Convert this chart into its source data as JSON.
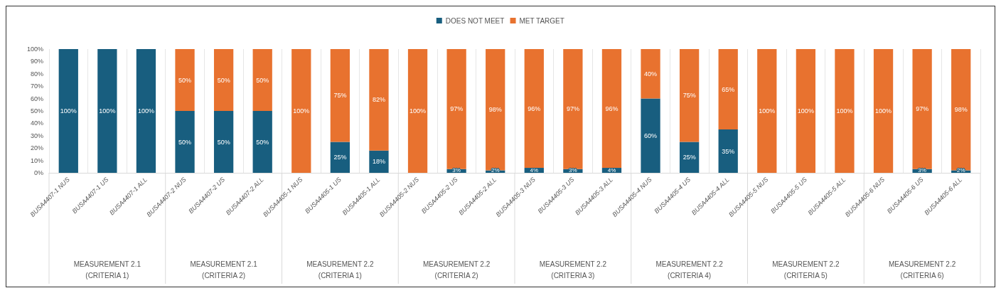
{
  "chart_data": {
    "type": "bar",
    "stacked": true,
    "legend": "top",
    "grid": "x",
    "categories": [
      "BUSA4407-1 NUS",
      "BUSA4407-1 US",
      "BUSA4407-1 ALL",
      "BUSA4407-2 NUS",
      "BUSA4407-2 US",
      "BUSA4407-2 ALL",
      "BUSA4405-1 NUS",
      "BUSA4405-1 US",
      "BUSA4405-1 ALL",
      "BUSA4405-2 NUS",
      "BUSA4405-2 US",
      "BUSA4405-2 ALL",
      "BUSA4405-3 NUS",
      "BUSA4405-3 US",
      "BUSA4405-3 ALL",
      "BUSA4405-4 NUS",
      "BUSA4405-4 US",
      "BUSA4405-4 ALL",
      "BUSA4405-5 NUS",
      "BUSA4405-5 US",
      "BUSA4405-5 ALL",
      "BUSA4405-6 NUS",
      "BUSA4405-6 US",
      "BUSA4405-6 ALL"
    ],
    "series": [
      {
        "name": "DOES NOT MEET",
        "color": "#185e7f",
        "values": [
          100,
          100,
          100,
          50,
          50,
          50,
          0,
          25,
          18,
          0,
          3,
          2,
          4,
          3,
          4,
          60,
          25,
          35,
          0,
          0,
          0,
          0,
          3,
          2
        ],
        "value_labels": [
          "100%",
          "100%",
          "100%",
          "50%",
          "50%",
          "50%",
          null,
          "25%",
          "18%",
          null,
          "3%",
          "2%",
          "4%",
          "3%",
          "4%",
          "60%",
          "25%",
          "35%",
          null,
          null,
          null,
          null,
          "3%",
          "2%"
        ]
      },
      {
        "name": "MET TARGET",
        "color": "#e8722f",
        "values": [
          0,
          0,
          0,
          50,
          50,
          50,
          100,
          75,
          82,
          100,
          97,
          98,
          96,
          97,
          96,
          40,
          75,
          65,
          100,
          100,
          100,
          100,
          97,
          98
        ],
        "value_labels": [
          null,
          null,
          null,
          "50%",
          "50%",
          "50%",
          "100%",
          "75%",
          "82%",
          "100%",
          "97%",
          "98%",
          "96%",
          "97%",
          "96%",
          "40%",
          "75%",
          "65%",
          "100%",
          "100%",
          "100%",
          "100%",
          "97%",
          "98%"
        ]
      }
    ],
    "ylim": [
      0,
      100
    ],
    "yticks": [
      {
        "value": 0,
        "label": "0%"
      },
      {
        "value": 10,
        "label": "10%"
      },
      {
        "value": 20,
        "label": "20%"
      },
      {
        "value": 30,
        "label": "30%"
      },
      {
        "value": 40,
        "label": "40%"
      },
      {
        "value": 50,
        "label": "50%"
      },
      {
        "value": 60,
        "label": "60%"
      },
      {
        "value": 70,
        "label": "70%"
      },
      {
        "value": 80,
        "label": "80%"
      },
      {
        "value": 90,
        "label": "90%"
      },
      {
        "value": 100,
        "label": "100%"
      }
    ],
    "annotations": [
      "MEASUREMENT 2.1\n(CRITERIA 1)",
      "MEASUREMENT 2.1\n(CRITERIA 2)",
      "MEASUREMENT 2.2\n(CRITERIA 1)",
      "MEASUREMENT 2.2\n(CRITERIA 2)",
      "MEASUREMENT 2.2\n(CRITERIA 3)",
      "MEASUREMENT 2.2\n(CRITERIA 4)",
      "MEASUREMENT 2.2\n(CRITERIA 5)",
      "MEASUREMENT 2.2\n(CRITERIA 6)"
    ]
  }
}
